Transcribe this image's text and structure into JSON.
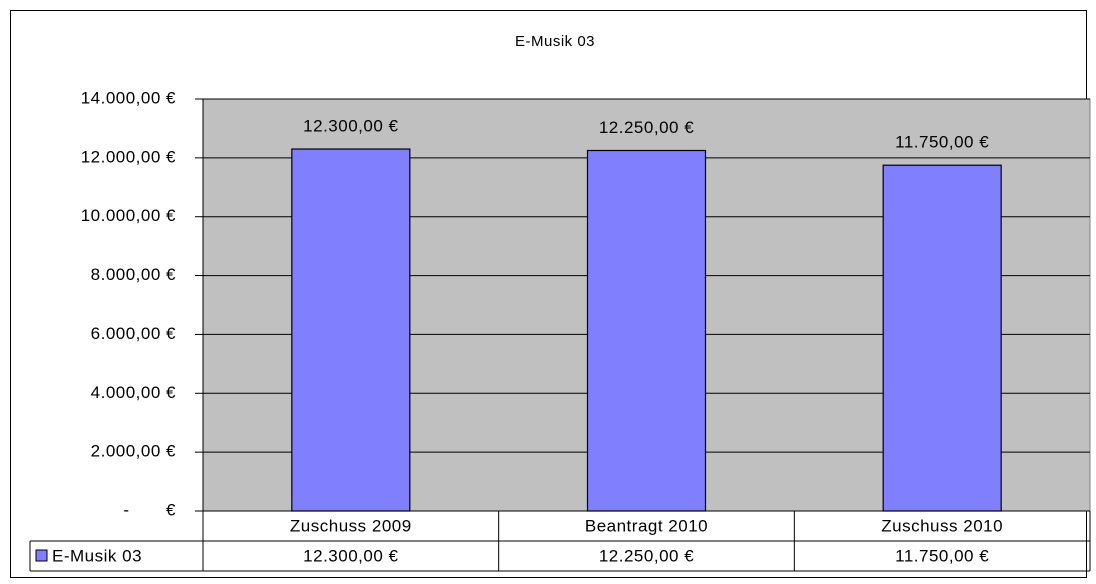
{
  "chart_data": {
    "type": "bar",
    "title": "E-Musik 03",
    "categories": [
      "Zuschuss 2009",
      "Beantragt 2010",
      "Zuschuss 2010"
    ],
    "series": [
      {
        "name": "E-Musik 03",
        "color": "#8080ff",
        "values": [
          12300,
          12250,
          11750
        ],
        "value_labels": [
          "12.300,00 €",
          "12.250,00 €",
          "11.750,00 €"
        ]
      }
    ],
    "ylim": [
      0,
      14000
    ],
    "yticks": [
      {
        "value": 0,
        "label": "-       €"
      },
      {
        "value": 2000,
        "label": "2.000,00 €"
      },
      {
        "value": 4000,
        "label": "4.000,00 €"
      },
      {
        "value": 6000,
        "label": "6.000,00 €"
      },
      {
        "value": 8000,
        "label": "8.000,00 €"
      },
      {
        "value": 10000,
        "label": "10.000,00 €"
      },
      {
        "value": 12000,
        "label": "12.000,00 €"
      },
      {
        "value": 14000,
        "label": "14.000,00 €"
      }
    ],
    "grid": true,
    "plot_background": "#c0c0c0"
  }
}
